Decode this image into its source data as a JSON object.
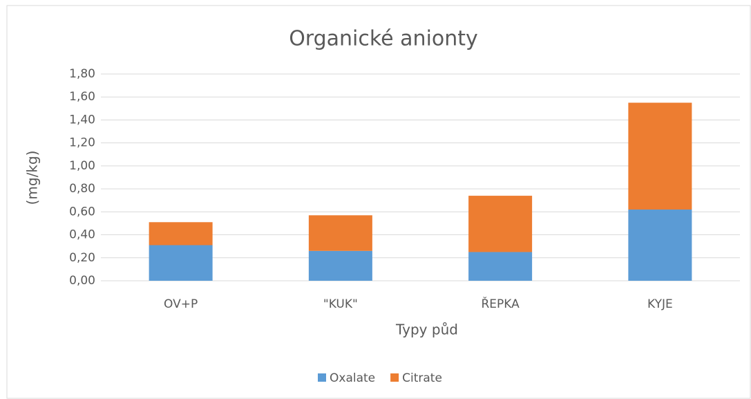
{
  "chart_data": {
    "type": "stacked_bar",
    "title": "Organické anionty",
    "x_label": "Typy půd",
    "y_label": "(mg/kg)",
    "categories": [
      "OV+P",
      "\"KUK\"",
      "ŘEPKA",
      "KYJE"
    ],
    "series": [
      {
        "name": "Oxalate",
        "color": "#5b9bd5",
        "values": [
          0.31,
          0.26,
          0.25,
          0.62
        ]
      },
      {
        "name": "Citrate",
        "color": "#ed7d31",
        "values": [
          0.2,
          0.31,
          0.49,
          0.93
        ]
      }
    ],
    "ylim": [
      0,
      1.8
    ],
    "yticks": [
      {
        "value": 0,
        "label": "0,00"
      },
      {
        "value": 0.2,
        "label": "0,20"
      },
      {
        "value": 0.4,
        "label": "0,40"
      },
      {
        "value": 0.6,
        "label": "0,60"
      },
      {
        "value": 0.8,
        "label": "0,80"
      },
      {
        "value": 1.0,
        "label": "1,00"
      },
      {
        "value": 1.2,
        "label": "1,20"
      },
      {
        "value": 1.4,
        "label": "1,40"
      },
      {
        "value": 1.6,
        "label": "1,60"
      },
      {
        "value": 1.8,
        "label": "1,80"
      }
    ],
    "grid": true,
    "legend": "bottom"
  }
}
